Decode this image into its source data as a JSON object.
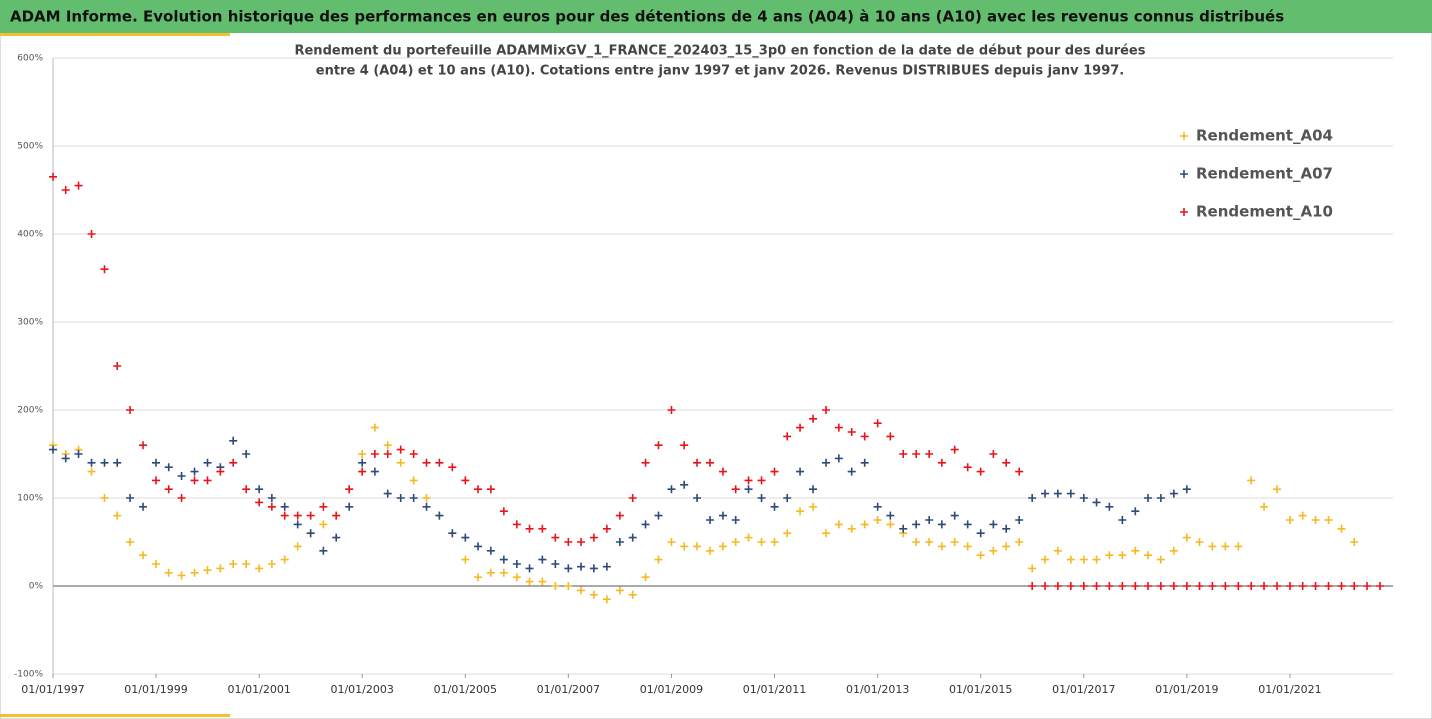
{
  "chart_data": {
    "type": "scatter",
    "title": "ADAM Informe. Evolution historique des performances en euros pour des détentions de 4 ans (A04) à 10 ans (A10) avec les revenus connus distribués",
    "subtitle": [
      "Rendement du portefeuille ADAMMixGV_1_FRANCE_202403_15_3p0  en fonction de la date de début pour des durées",
      "entre 4 (A04) et 10 ans (A10). Cotations entre janv 1997 et janv 2026. Revenus DISTRIBUES depuis janv 1997."
    ],
    "x": [
      "1997-01-01",
      "1997-04-01",
      "1997-07-01",
      "1997-10-01",
      "1998-01-01",
      "1998-04-01",
      "1998-07-01",
      "1998-10-01",
      "1999-01-01",
      "1999-04-01",
      "1999-07-01",
      "1999-10-01",
      "2000-01-01",
      "2000-04-01",
      "2000-07-01",
      "2000-10-01",
      "2001-01-01",
      "2001-04-01",
      "2001-07-01",
      "2001-10-01",
      "2002-01-01",
      "2002-04-01",
      "2002-07-01",
      "2002-10-01",
      "2003-01-01",
      "2003-04-01",
      "2003-07-01",
      "2003-10-01",
      "2004-01-01",
      "2004-04-01",
      "2004-07-01",
      "2004-10-01",
      "2005-01-01",
      "2005-04-01",
      "2005-07-01",
      "2005-10-01",
      "2006-01-01",
      "2006-04-01",
      "2006-07-01",
      "2006-10-01",
      "2007-01-01",
      "2007-04-01",
      "2007-07-01",
      "2007-10-01",
      "2008-01-01",
      "2008-04-01",
      "2008-07-01",
      "2008-10-01",
      "2009-01-01",
      "2009-04-01",
      "2009-07-01",
      "2009-10-01",
      "2010-01-01",
      "2010-04-01",
      "2010-07-01",
      "2010-10-01",
      "2011-01-01",
      "2011-04-01",
      "2011-07-01",
      "2011-10-01",
      "2012-01-01",
      "2012-04-01",
      "2012-07-01",
      "2012-10-01",
      "2013-01-01",
      "2013-04-01",
      "2013-07-01",
      "2013-10-01",
      "2014-01-01",
      "2014-04-01",
      "2014-07-01",
      "2014-10-01",
      "2015-01-01",
      "2015-04-01",
      "2015-07-01",
      "2015-10-01",
      "2016-01-01",
      "2016-04-01",
      "2016-07-01",
      "2016-10-01",
      "2017-01-01",
      "2017-04-01",
      "2017-07-01",
      "2017-10-01",
      "2018-01-01",
      "2018-04-01",
      "2018-07-01",
      "2018-10-01",
      "2019-01-01",
      "2019-04-01",
      "2019-07-01",
      "2019-10-01",
      "2020-01-01",
      "2020-04-01",
      "2020-07-01",
      "2020-10-01",
      "2021-01-01",
      "2021-04-01",
      "2021-07-01",
      "2021-10-01",
      "2022-01-01",
      "2022-04-01",
      "2022-07-01",
      "2022-10-01"
    ],
    "series": [
      {
        "name": "Rendement_A04",
        "color": "#f5b921",
        "values": [
          160,
          150,
          155,
          130,
          100,
          80,
          50,
          35,
          25,
          15,
          12,
          15,
          18,
          20,
          25,
          25,
          20,
          25,
          30,
          45,
          60,
          70,
          80,
          110,
          150,
          180,
          160,
          140,
          120,
          100,
          80,
          60,
          30,
          10,
          15,
          15,
          10,
          5,
          5,
          0,
          0,
          -5,
          -10,
          -15,
          -5,
          -10,
          10,
          30,
          50,
          45,
          45,
          40,
          45,
          50,
          55,
          50,
          50,
          60,
          85,
          90,
          60,
          70,
          65,
          70,
          75,
          70,
          60,
          50,
          50,
          45,
          50,
          45,
          35,
          40,
          45,
          50,
          20,
          30,
          40,
          30,
          30,
          30,
          35,
          35,
          40,
          35,
          30,
          40,
          55,
          50,
          45,
          45,
          45,
          120,
          90,
          110,
          75,
          80,
          75,
          75,
          65,
          50,
          null,
          null
        ]
      },
      {
        "name": "Rendement_A07",
        "color": "#2e4a7a",
        "values": [
          155,
          145,
          150,
          140,
          140,
          140,
          100,
          90,
          140,
          135,
          125,
          130,
          140,
          135,
          165,
          150,
          110,
          100,
          90,
          70,
          60,
          40,
          55,
          90,
          140,
          130,
          105,
          100,
          100,
          90,
          80,
          60,
          55,
          45,
          40,
          30,
          25,
          20,
          30,
          25,
          20,
          22,
          20,
          22,
          50,
          55,
          70,
          80,
          110,
          115,
          100,
          75,
          80,
          75,
          110,
          100,
          90,
          100,
          130,
          110,
          140,
          145,
          130,
          140,
          90,
          80,
          65,
          70,
          75,
          70,
          80,
          70,
          60,
          70,
          65,
          75,
          100,
          105,
          105,
          105,
          100,
          95,
          90,
          75,
          85,
          100,
          100,
          105,
          110,
          null,
          null,
          null,
          null,
          null,
          null,
          null,
          null,
          null,
          null,
          null,
          null,
          null,
          null,
          null
        ]
      },
      {
        "name": "Rendement_A10",
        "color": "#e8141c",
        "values": [
          465,
          450,
          455,
          400,
          360,
          250,
          200,
          160,
          120,
          110,
          100,
          120,
          120,
          130,
          140,
          110,
          95,
          90,
          80,
          80,
          80,
          90,
          80,
          110,
          130,
          150,
          150,
          155,
          150,
          140,
          140,
          135,
          120,
          110,
          110,
          85,
          70,
          65,
          65,
          55,
          50,
          50,
          55,
          65,
          80,
          100,
          140,
          160,
          200,
          160,
          140,
          140,
          130,
          110,
          120,
          120,
          130,
          170,
          180,
          190,
          200,
          180,
          175,
          170,
          185,
          170,
          150,
          150,
          150,
          140,
          155,
          135,
          130,
          150,
          140,
          130,
          0,
          0,
          0,
          0,
          0,
          0,
          0,
          0,
          0,
          0,
          0,
          0,
          0,
          0,
          0,
          0,
          0,
          0,
          0,
          0,
          0,
          0,
          0,
          0,
          0,
          0,
          0,
          0
        ]
      }
    ],
    "xlim": [
      "1997-01-01",
      "2023-01-01"
    ],
    "xticks": [
      {
        "value": "1997-01-01",
        "label": "01/01/1997"
      },
      {
        "value": "1999-01-01",
        "label": "01/01/1999"
      },
      {
        "value": "2001-01-01",
        "label": "01/01/2001"
      },
      {
        "value": "2003-01-01",
        "label": "01/01/2003"
      },
      {
        "value": "2005-01-01",
        "label": "01/01/2005"
      },
      {
        "value": "2007-01-01",
        "label": "01/01/2007"
      },
      {
        "value": "2009-01-01",
        "label": "01/01/2009"
      },
      {
        "value": "2011-01-01",
        "label": "01/01/2011"
      },
      {
        "value": "2013-01-01",
        "label": "01/01/2013"
      },
      {
        "value": "2015-01-01",
        "label": "01/01/2015"
      },
      {
        "value": "2017-01-01",
        "label": "01/01/2017"
      },
      {
        "value": "2019-01-01",
        "label": "01/01/2019"
      },
      {
        "value": "2021-01-01",
        "label": "01/01/2021"
      }
    ],
    "ylim": [
      -100,
      600
    ],
    "yticks": [
      {
        "value": -100,
        "label": "-100%"
      },
      {
        "value": 0,
        "label": "0%"
      },
      {
        "value": 100,
        "label": "100%"
      },
      {
        "value": 200,
        "label": "200%"
      },
      {
        "value": 300,
        "label": "300%"
      },
      {
        "value": 400,
        "label": "400%"
      },
      {
        "value": 500,
        "label": "500%"
      },
      {
        "value": 600,
        "label": "600%"
      }
    ],
    "grid": true
  }
}
